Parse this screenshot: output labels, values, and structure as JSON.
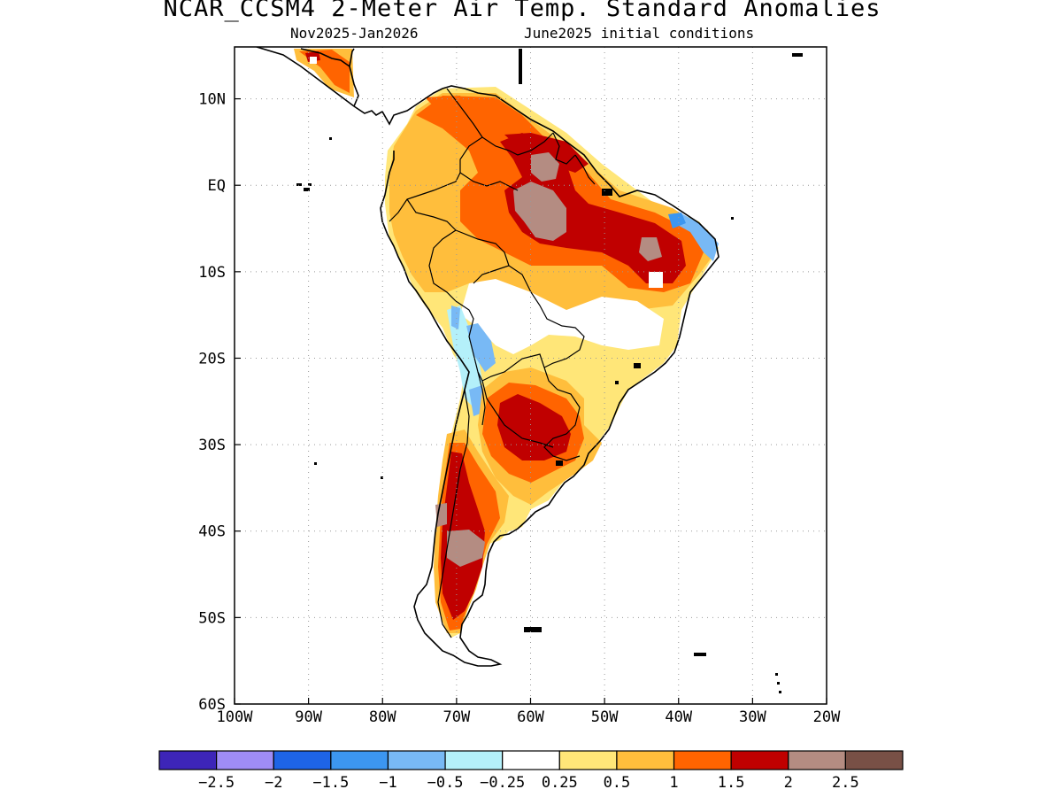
{
  "title": "NCAR_CCSM4 2-Meter Air Temp. Standard Anomalies",
  "subtitle_left": "Nov2025-Jan2026",
  "subtitle_right": "June2025 initial conditions",
  "map": {
    "lon_range": [
      -100,
      -20
    ],
    "lat_range": [
      -60,
      16
    ],
    "lon_ticks": [
      {
        "value": -100,
        "label": "100W"
      },
      {
        "value": -90,
        "label": "90W"
      },
      {
        "value": -80,
        "label": "80W"
      },
      {
        "value": -70,
        "label": "70W"
      },
      {
        "value": -60,
        "label": "60W"
      },
      {
        "value": -50,
        "label": "50W"
      },
      {
        "value": -40,
        "label": "40W"
      },
      {
        "value": -30,
        "label": "30W"
      },
      {
        "value": -20,
        "label": "20W"
      }
    ],
    "lat_ticks": [
      {
        "value": 10,
        "label": "10N"
      },
      {
        "value": 0,
        "label": "EQ"
      },
      {
        "value": -10,
        "label": "10S"
      },
      {
        "value": -20,
        "label": "20S"
      },
      {
        "value": -30,
        "label": "30S"
      },
      {
        "value": -40,
        "label": "40S"
      },
      {
        "value": -50,
        "label": "50S"
      },
      {
        "value": -60,
        "label": "60S"
      }
    ],
    "grid": "dotted"
  },
  "colorbar": {
    "colors": [
      "#3d25b8",
      "#9f8cf5",
      "#1e64e6",
      "#3c96f0",
      "#78b9f5",
      "#b4f0fa",
      "#ffffff",
      "#ffe678",
      "#ffbe3c",
      "#ff6400",
      "#c00000",
      "#b48c82",
      "#785046"
    ],
    "labels": [
      "-2.5",
      "-2",
      "-1.5",
      "-1",
      "-0.5",
      "-0.25",
      "0.25",
      "0.5",
      "1",
      "1.5",
      "2",
      "2.5"
    ]
  }
}
